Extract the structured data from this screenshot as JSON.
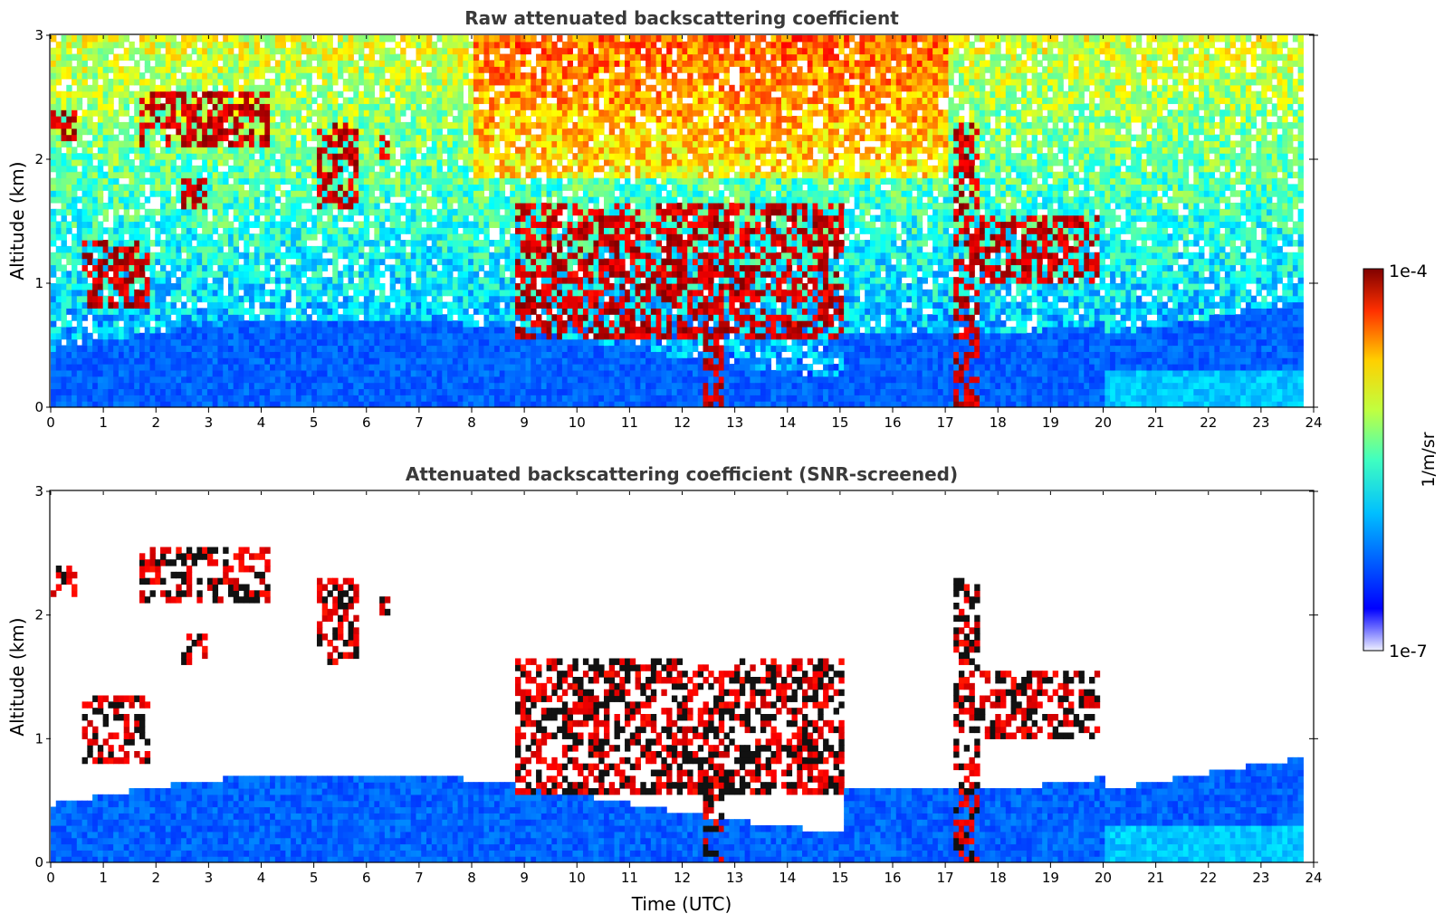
{
  "chart_data": [
    {
      "type": "heatmap",
      "title": "Raw attenuated backscattering coefficient",
      "ylabel": "Altitude (km)",
      "xlabel": "",
      "xlim": [
        0,
        24
      ],
      "ylim": [
        0,
        3
      ],
      "xticks": [
        "0",
        "1",
        "2",
        "3",
        "4",
        "5",
        "6",
        "7",
        "8",
        "9",
        "10",
        "11",
        "12",
        "13",
        "14",
        "15",
        "16",
        "17",
        "18",
        "19",
        "20",
        "21",
        "22",
        "23",
        "24"
      ],
      "yticks": [
        "0",
        "1",
        "2",
        "3"
      ],
      "screening": "none",
      "cloud_features": [
        {
          "t_start": 0.0,
          "t_end": 0.4,
          "alt_base": 2.15,
          "alt_top": 2.4
        },
        {
          "t_start": 0.5,
          "t_end": 1.8,
          "alt_base": 0.8,
          "alt_top": 1.3
        },
        {
          "t_start": 1.6,
          "t_end": 4.1,
          "alt_base": 2.1,
          "alt_top": 2.55
        },
        {
          "t_start": 2.4,
          "t_end": 2.9,
          "alt_base": 1.6,
          "alt_top": 1.8
        },
        {
          "t_start": 5.0,
          "t_end": 5.8,
          "alt_base": 1.6,
          "alt_top": 2.3
        },
        {
          "t_start": 6.2,
          "t_end": 6.4,
          "alt_base": 2.0,
          "alt_top": 2.15
        },
        {
          "t_start": 8.8,
          "t_end": 15.0,
          "alt_base": 0.55,
          "alt_top": 1.6
        },
        {
          "t_start": 12.3,
          "t_end": 12.7,
          "alt_base": 0.0,
          "alt_top": 1.1
        },
        {
          "t_start": 17.1,
          "t_end": 17.6,
          "alt_base": 0.0,
          "alt_top": 2.3
        },
        {
          "t_start": 17.6,
          "t_end": 19.9,
          "alt_base": 1.0,
          "alt_top": 1.5
        }
      ]
    },
    {
      "type": "heatmap",
      "title": "Attenuated backscattering coefficient (SNR-screened)",
      "ylabel": "Altitude (km)",
      "xlabel": "Time (UTC)",
      "xlim": [
        0,
        24
      ],
      "ylim": [
        0,
        3
      ],
      "xticks": [
        "0",
        "1",
        "2",
        "3",
        "4",
        "5",
        "6",
        "7",
        "8",
        "9",
        "10",
        "11",
        "12",
        "13",
        "14",
        "15",
        "16",
        "17",
        "18",
        "19",
        "20",
        "21",
        "22",
        "23",
        "24"
      ],
      "yticks": [
        "0",
        "1",
        "2",
        "3"
      ],
      "screening": "low-SNR pixels masked (white)"
    }
  ],
  "colorbar": {
    "label": "1/m/sr",
    "min_label": "1e-7",
    "max_label": "1e-4",
    "scale": "log",
    "colormap": "jet"
  }
}
